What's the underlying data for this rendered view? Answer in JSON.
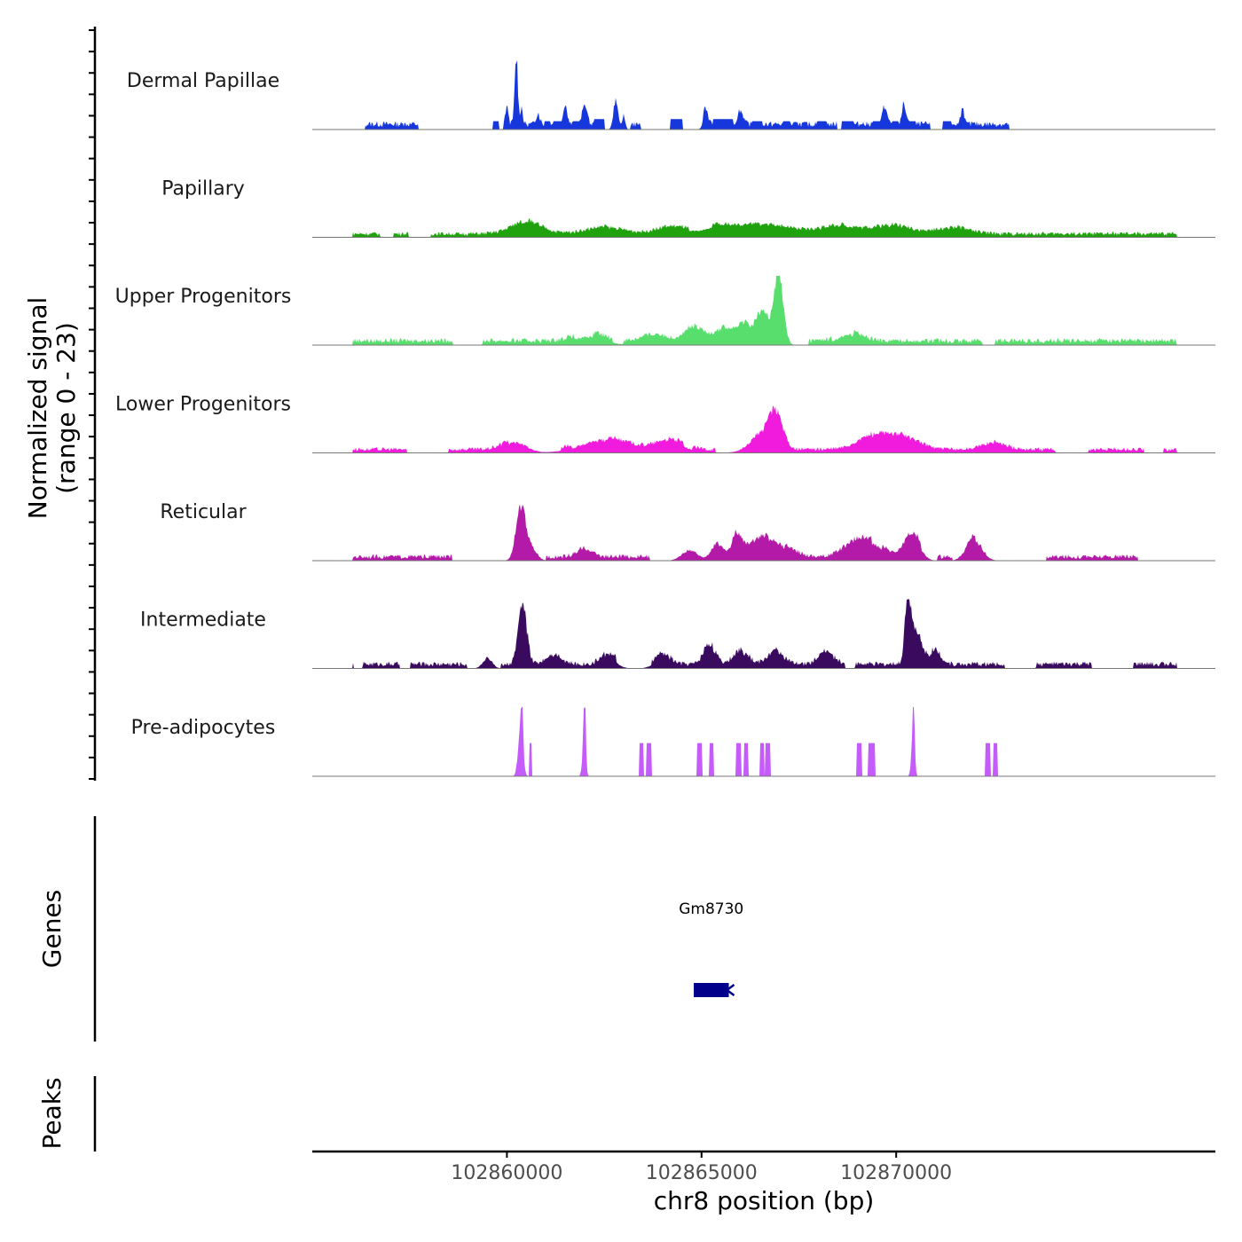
{
  "chart_data": {
    "type": "area",
    "ylabel_line1": "Normalized signal",
    "ylabel_line2": "(range 0 - 23)",
    "y_range": [
      0,
      23
    ],
    "xlabel": "chr8 position (bp)",
    "x_range": [
      102855000,
      102878200
    ],
    "x_ticks": [
      {
        "value": 102860000,
        "label": "102860000"
      },
      {
        "value": 102865000,
        "label": "102865000"
      },
      {
        "value": 102870000,
        "label": "102870000"
      }
    ],
    "genes_label": "Genes",
    "peaks_label": "Peaks",
    "genes": [
      {
        "name": "Gm8730",
        "start": 102864800,
        "end": 102865700,
        "strand": "-",
        "color": "#00008B"
      }
    ],
    "tracks": [
      {
        "name": "Dermal Papillae",
        "color": "#1537DC",
        "peaks": [
          [
            102860000,
            0.25,
            40
          ],
          [
            102860240,
            1.0,
            40
          ],
          [
            102860380,
            0.25,
            30
          ],
          [
            102860800,
            0.15,
            50
          ],
          [
            102861500,
            0.3,
            50
          ],
          [
            102862000,
            0.3,
            60
          ],
          [
            102862800,
            0.45,
            60
          ],
          [
            102863000,
            0.2,
            40
          ],
          [
            102865100,
            0.25,
            60
          ],
          [
            102866000,
            0.2,
            70
          ],
          [
            102869700,
            0.25,
            60
          ],
          [
            102870200,
            0.3,
            50
          ],
          [
            102871700,
            0.25,
            40
          ]
        ],
        "blocks": [
          [
            102859640,
            102859780,
            0.12
          ],
          [
            102860960,
            102861100,
            0.12
          ],
          [
            102861200,
            102861400,
            0.12
          ],
          [
            102861700,
            102861850,
            0.12
          ],
          [
            102862250,
            102862500,
            0.15
          ],
          [
            102864200,
            102864500,
            0.15
          ],
          [
            102865300,
            102865800,
            0.15
          ],
          [
            102866300,
            102866550,
            0.12
          ],
          [
            102867100,
            102867250,
            0.12
          ],
          [
            102868000,
            102868200,
            0.12
          ],
          [
            102868600,
            102868900,
            0.12
          ],
          [
            102869400,
            102869600,
            0.12
          ],
          [
            102869900,
            102870050,
            0.12
          ],
          [
            102870300,
            102870500,
            0.12
          ],
          [
            102871200,
            102871400,
            0.12
          ]
        ],
        "noise": 0.12,
        "coverage": 0.55
      },
      {
        "name": "Papillary",
        "color": "#1FA20E",
        "peaks": [
          [
            102860500,
            0.18,
            400
          ],
          [
            102862500,
            0.1,
            500
          ],
          [
            102864200,
            0.1,
            400
          ],
          [
            102865400,
            0.12,
            500
          ],
          [
            102866700,
            0.14,
            600
          ],
          [
            102868500,
            0.12,
            500
          ],
          [
            102869900,
            0.13,
            500
          ],
          [
            102871500,
            0.1,
            400
          ]
        ],
        "blocks": [],
        "noise": 0.08,
        "coverage": 0.9
      },
      {
        "name": "Upper Progenitors",
        "color": "#58DE6C",
        "peaks": [
          [
            102862100,
            0.12,
            400
          ],
          [
            102863800,
            0.1,
            300
          ],
          [
            102866550,
            0.45,
            150
          ],
          [
            102866980,
            1.0,
            120
          ],
          [
            102866100,
            0.25,
            150
          ],
          [
            102865600,
            0.2,
            250
          ],
          [
            102868800,
            0.15,
            300
          ],
          [
            102864800,
            0.2,
            250
          ]
        ],
        "blocks": [],
        "noise": 0.1,
        "coverage": 0.8
      },
      {
        "name": "Lower Progenitors",
        "color": "#F11BDE",
        "peaks": [
          [
            102860200,
            0.15,
            300
          ],
          [
            102862500,
            0.18,
            600
          ],
          [
            102864200,
            0.15,
            350
          ],
          [
            102866900,
            0.5,
            180
          ],
          [
            102866500,
            0.2,
            300
          ],
          [
            102869400,
            0.2,
            400
          ],
          [
            102870200,
            0.18,
            400
          ],
          [
            102872500,
            0.1,
            300
          ]
        ],
        "blocks": [],
        "noise": 0.08,
        "coverage": 0.75
      },
      {
        "name": "Reticular",
        "color": "#B31AA8",
        "peaks": [
          [
            102860350,
            0.75,
            120
          ],
          [
            102860600,
            0.2,
            150
          ],
          [
            102862000,
            0.12,
            200
          ],
          [
            102864700,
            0.15,
            200
          ],
          [
            102865400,
            0.25,
            150
          ],
          [
            102865900,
            0.3,
            150
          ],
          [
            102866500,
            0.18,
            300
          ],
          [
            102866900,
            0.2,
            400
          ],
          [
            102868900,
            0.2,
            300
          ],
          [
            102869400,
            0.2,
            300
          ],
          [
            102870400,
            0.35,
            200
          ],
          [
            102872000,
            0.3,
            200
          ]
        ],
        "blocks": [],
        "noise": 0.09,
        "coverage": 0.7
      },
      {
        "name": "Intermediate",
        "color": "#3A0A5E",
        "peaks": [
          [
            102860400,
            0.85,
            110
          ],
          [
            102859500,
            0.15,
            120
          ],
          [
            102861200,
            0.15,
            200
          ],
          [
            102862600,
            0.15,
            200
          ],
          [
            102864000,
            0.15,
            200
          ],
          [
            102865200,
            0.3,
            150
          ],
          [
            102866000,
            0.2,
            200
          ],
          [
            102866900,
            0.2,
            200
          ],
          [
            102868200,
            0.18,
            200
          ],
          [
            102870300,
            0.95,
            70
          ],
          [
            102870500,
            0.5,
            150
          ],
          [
            102871000,
            0.2,
            150
          ]
        ],
        "blocks": [],
        "noise": 0.1,
        "coverage": 0.7
      },
      {
        "name": "Pre-adipocytes",
        "color": "#C55BFA",
        "peaks": [
          [
            102860350,
            0.7,
            60
          ],
          [
            102860390,
            1.0,
            12
          ],
          [
            102861980,
            0.55,
            40
          ],
          [
            102862000,
            0.8,
            10
          ],
          [
            102870430,
            0.55,
            40
          ],
          [
            102870450,
            0.75,
            10
          ]
        ],
        "blocks": [
          [
            102860210,
            102860560,
            0.0
          ],
          [
            102860580,
            102860640,
            0.48
          ],
          [
            102861850,
            102862050,
            0.0
          ],
          [
            102863400,
            102863500,
            0.48
          ],
          [
            102863600,
            102863700,
            0.48
          ],
          [
            102864900,
            102865000,
            0.48
          ],
          [
            102865200,
            102865300,
            0.48
          ],
          [
            102865900,
            102866000,
            0.48
          ],
          [
            102866100,
            102866200,
            0.48
          ],
          [
            102866500,
            102866600,
            0.48
          ],
          [
            102866650,
            102866750,
            0.48
          ],
          [
            102869000,
            102869100,
            0.48
          ],
          [
            102869300,
            102869450,
            0.48
          ],
          [
            102870250,
            102870550,
            0.0
          ],
          [
            102872300,
            102872400,
            0.48
          ],
          [
            102872500,
            102872600,
            0.48
          ]
        ],
        "noise": 0.0,
        "coverage": 0.0
      }
    ]
  },
  "ytick_count": 36
}
